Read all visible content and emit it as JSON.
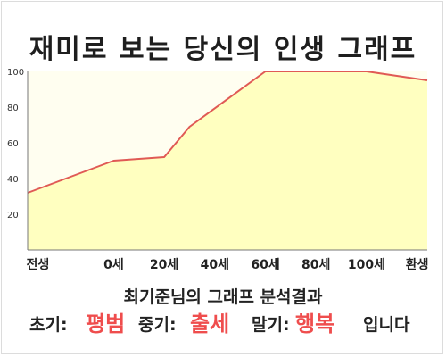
{
  "title": "재미로 보는 당신의 인생 그래프",
  "chart_data": {
    "type": "area",
    "x_ticks": [
      {
        "label": "전생",
        "x": -30
      },
      {
        "label": "0세",
        "x": 0
      },
      {
        "label": "20세",
        "x": 20
      },
      {
        "label": "40세",
        "x": 40
      },
      {
        "label": "60세",
        "x": 60
      },
      {
        "label": "80세",
        "x": 80
      },
      {
        "label": "100세",
        "x": 100
      },
      {
        "label": "환생",
        "x": 120
      }
    ],
    "y_ticks": [
      20,
      40,
      60,
      80,
      100
    ],
    "ylim": [
      0,
      100
    ],
    "xlim": [
      -34,
      124
    ],
    "grid": false,
    "series": [
      {
        "x": [
          -34,
          0,
          20,
          30,
          60,
          100,
          124
        ],
        "y": [
          32,
          50,
          52,
          69,
          100,
          100,
          95
        ]
      }
    ]
  },
  "summary": "최기준님의 그래프 분석결과",
  "results": {
    "early_label": "초기:",
    "early_value": "평범",
    "mid_label": "중기:",
    "mid_value": "출세",
    "late_label": "말기:",
    "late_value": "행복",
    "ending": "입니다"
  },
  "colors": {
    "line": "#e05a55",
    "fill": "#ffffc0",
    "plot_bg": "#fffef0",
    "highlight": "#ef4d4d"
  }
}
